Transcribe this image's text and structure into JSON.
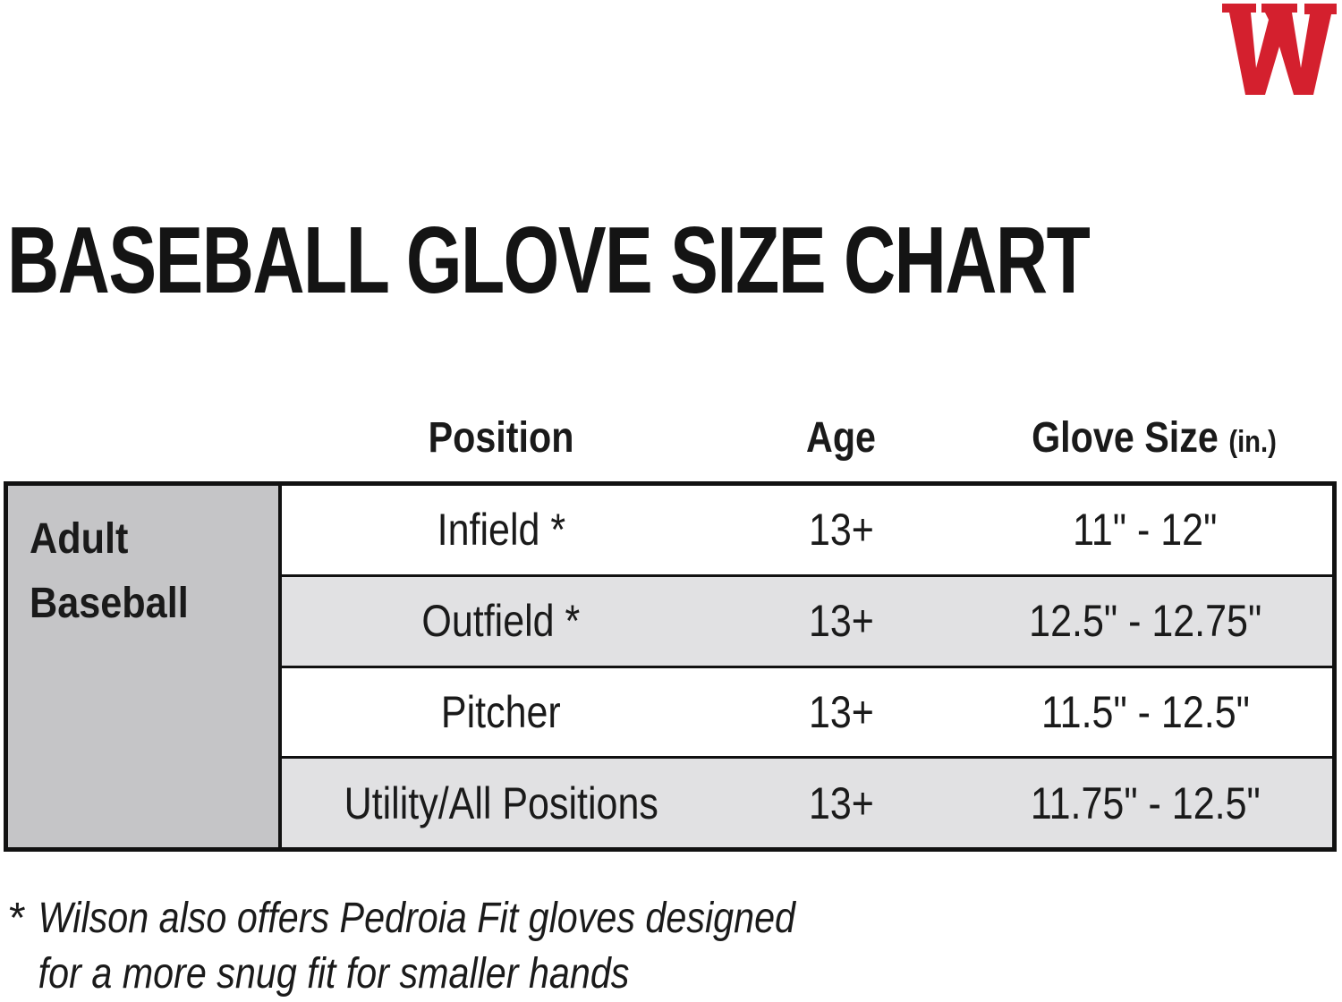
{
  "brand": {
    "logo_icon": "wilson-w-logo-icon",
    "logo_color": "#d4202e"
  },
  "title": "BASEBALL GLOVE SIZE CHART",
  "columns": {
    "position": "Position",
    "age": "Age",
    "glove_size": "Glove Size",
    "glove_size_unit": "(in.)"
  },
  "group": {
    "line1": "Adult",
    "line2": "Baseball",
    "background": "#c5c5c7"
  },
  "rows": [
    {
      "position": "Infield *",
      "age": "13+",
      "glove_size": "11\" - 12\""
    },
    {
      "position": "Outfield *",
      "age": "13+",
      "glove_size": "12.5\" - 12.75\""
    },
    {
      "position": "Pitcher",
      "age": "13+",
      "glove_size": "11.5\" - 12.5\""
    },
    {
      "position": "Utility/All Positions",
      "age": "13+",
      "glove_size": "11.75\" - 12.5\""
    }
  ],
  "footnote": {
    "mark": "*",
    "line1": "Wilson also offers Pedroia Fit gloves designed",
    "line2": "for a more snug fit for smaller hands"
  }
}
